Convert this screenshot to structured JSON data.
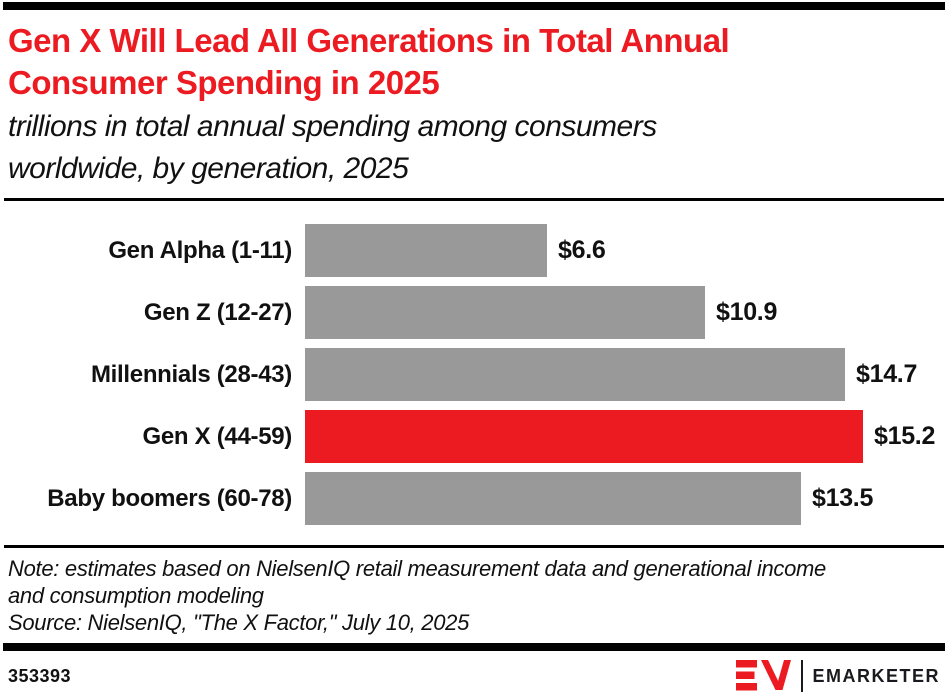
{
  "header": {
    "title_line1": "Gen X Will Lead All Generations in Total Annual",
    "title_line2": "Consumer Spending in 2025",
    "subtitle_line1": "trillions in total annual spending among consumers",
    "subtitle_line2": "worldwide, by generation, 2025"
  },
  "chart_data": {
    "type": "bar",
    "orientation": "horizontal",
    "title": "Gen X Will Lead All Generations in Total Annual Consumer Spending in 2025",
    "subtitle": "trillions in total annual spending among consumers worldwide, by generation, 2025",
    "unit": "USD trillions",
    "categories": [
      "Gen Alpha (1-11)",
      "Gen Z (12-27)",
      "Millennials (28-43)",
      "Gen X (44-59)",
      "Baby boomers (60-78)"
    ],
    "values": [
      6.6,
      10.9,
      14.7,
      15.2,
      13.5
    ],
    "value_labels": [
      "$6.6",
      "$10.9",
      "$14.7",
      "$15.2",
      "$13.5"
    ],
    "highlight_index": 3,
    "xlim": [
      0,
      15.2
    ],
    "bar_color": "#999999",
    "highlight_color": "#EC1B21",
    "grid": "off",
    "legend": "none"
  },
  "notes": {
    "note_line1": "Note: estimates based on NielsenIQ retail measurement data and generational income",
    "note_line2": "and consumption modeling",
    "source_line": "Source: NielsenIQ, \"The X Factor,\" July 10, 2025"
  },
  "footer": {
    "chart_id": "353393",
    "brand_name": "EMARKETER"
  },
  "colors": {
    "accent_red": "#EC1B21",
    "bar_gray": "#999999",
    "rule_black": "#000000"
  }
}
